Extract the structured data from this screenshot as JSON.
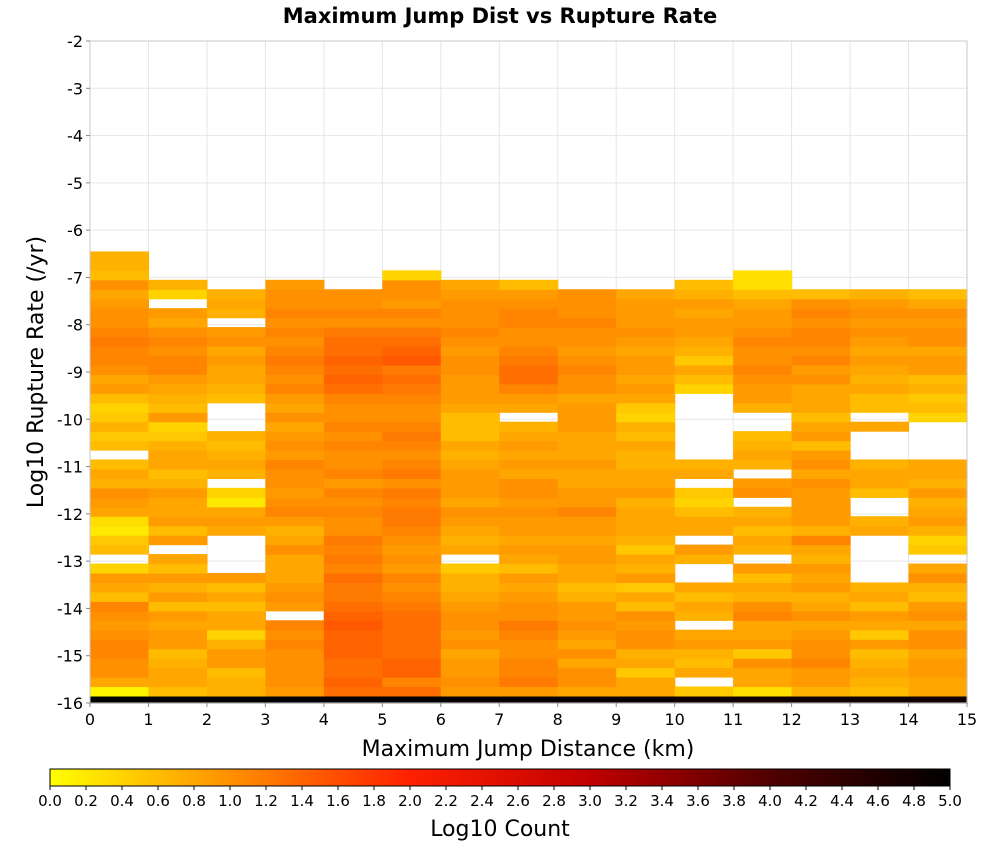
{
  "chart_data": {
    "type": "heatmap",
    "title": "Maximum Jump Dist vs Rupture Rate",
    "xlabel": "Maximum Jump Distance (km)",
    "ylabel": "Log10 Rupture Rate (/yr)",
    "xlim": [
      0,
      15
    ],
    "ylim": [
      -16,
      -2
    ],
    "x_ticks": [
      0,
      1,
      2,
      3,
      4,
      5,
      6,
      7,
      8,
      9,
      10,
      11,
      12,
      13,
      14,
      15
    ],
    "y_ticks": [
      -2,
      -3,
      -4,
      -5,
      -6,
      -7,
      -8,
      -9,
      -10,
      -11,
      -12,
      -13,
      -14,
      -15,
      -16
    ],
    "x_bin_width": 1,
    "y_bin_height": 0.2,
    "y_bin_start": -15.95,
    "grid": true,
    "colorbar": {
      "label": "Log10 Count",
      "min": 0.0,
      "max": 5.0,
      "ticks": [
        "0.0",
        "0.2",
        "0.4",
        "0.6",
        "0.8",
        "1.0",
        "1.2",
        "1.4",
        "1.6",
        "1.8",
        "2.0",
        "2.2",
        "2.4",
        "2.6",
        "2.8",
        "3.0",
        "3.2",
        "3.4",
        "3.6",
        "3.8",
        "4.0",
        "4.2",
        "4.4",
        "4.6",
        "4.8",
        "5.0"
      ],
      "placement": "bottom",
      "colors": [
        "#ffff00",
        "#ff9000",
        "#ff2000",
        "#c00000",
        "#500000",
        "#000000"
      ]
    },
    "rows_bottom_to_top": [
      [
        5.0,
        5.0,
        5.0,
        5.0,
        5.0,
        5.0,
        4.9,
        4.9,
        4.9,
        4.9,
        4.8,
        4.8,
        4.8,
        4.8,
        4.8
      ],
      [
        0.1,
        0.6,
        0.7,
        0.9,
        1.3,
        1.3,
        0.9,
        0.9,
        0.8,
        0.8,
        0.5,
        0.3,
        0.7,
        0.6,
        0.8
      ],
      [
        0.8,
        0.8,
        0.7,
        1.0,
        1.4,
        1.1,
        1.0,
        1.2,
        1.0,
        0.8,
        null,
        0.8,
        0.9,
        0.7,
        0.8
      ],
      [
        1.0,
        0.8,
        0.6,
        1.0,
        1.3,
        1.4,
        0.9,
        1.1,
        1.0,
        0.5,
        0.8,
        0.8,
        0.9,
        0.8,
        0.9
      ],
      [
        1.0,
        0.7,
        0.9,
        1.0,
        1.3,
        1.4,
        0.9,
        1.1,
        0.8,
        0.8,
        0.6,
        1.0,
        1.1,
        0.7,
        0.9
      ],
      [
        1.1,
        0.6,
        0.9,
        1.0,
        1.4,
        1.3,
        0.8,
        1.0,
        1.0,
        0.7,
        0.7,
        0.5,
        1.0,
        0.6,
        0.8
      ],
      [
        1.1,
        0.9,
        0.7,
        1.1,
        1.4,
        1.3,
        1.0,
        1.0,
        0.8,
        1.0,
        0.9,
        0.9,
        1.0,
        0.9,
        1.0
      ],
      [
        1.0,
        0.9,
        0.4,
        1.0,
        1.4,
        1.3,
        0.9,
        1.1,
        0.9,
        1.0,
        0.8,
        0.8,
        0.9,
        0.5,
        1.0
      ],
      [
        0.9,
        0.8,
        0.8,
        1.1,
        1.5,
        1.3,
        1.0,
        1.2,
        1.0,
        0.9,
        null,
        0.8,
        0.8,
        0.8,
        0.8
      ],
      [
        1.0,
        0.9,
        0.8,
        null,
        1.4,
        1.3,
        1.0,
        1.0,
        0.9,
        1.0,
        0.7,
        1.1,
        1.0,
        0.9,
        1.0
      ],
      [
        1.1,
        0.6,
        0.6,
        0.9,
        1.3,
        1.2,
        0.9,
        1.0,
        0.9,
        0.6,
        0.8,
        1.0,
        0.8,
        0.6,
        0.9
      ],
      [
        0.6,
        0.9,
        0.8,
        1.0,
        1.2,
        1.1,
        0.8,
        0.9,
        0.7,
        0.8,
        0.6,
        0.7,
        0.7,
        0.8,
        0.6
      ],
      [
        0.8,
        0.7,
        0.6,
        0.9,
        1.2,
        1.0,
        0.7,
        0.8,
        0.6,
        0.5,
        0.8,
        0.8,
        0.9,
        0.7,
        0.7
      ],
      [
        0.9,
        0.9,
        0.9,
        0.8,
        1.3,
        1.1,
        0.7,
        0.9,
        0.8,
        0.9,
        null,
        0.6,
        0.8,
        null,
        1.0
      ],
      [
        0.4,
        0.6,
        null,
        0.8,
        1.1,
        0.9,
        0.5,
        0.6,
        0.8,
        0.7,
        null,
        0.9,
        0.9,
        null,
        0.8
      ],
      [
        null,
        0.8,
        null,
        0.8,
        1.2,
        1.0,
        null,
        0.8,
        0.9,
        0.8,
        0.7,
        null,
        0.7,
        null,
        null
      ],
      [
        0.6,
        null,
        null,
        1.0,
        1.1,
        0.9,
        0.8,
        0.9,
        0.9,
        0.5,
        0.9,
        0.7,
        0.8,
        null,
        0.5
      ],
      [
        0.5,
        0.9,
        null,
        0.8,
        1.2,
        1.0,
        0.7,
        0.8,
        0.8,
        0.7,
        null,
        0.8,
        1.1,
        null,
        0.4
      ],
      [
        0.2,
        0.6,
        0.8,
        0.7,
        1.0,
        1.1,
        0.8,
        0.9,
        0.9,
        0.8,
        0.8,
        0.6,
        0.7,
        0.8,
        0.7
      ],
      [
        0.3,
        0.9,
        0.9,
        0.9,
        1.0,
        1.2,
        0.9,
        0.9,
        0.9,
        0.8,
        0.8,
        0.8,
        0.9,
        0.7,
        0.9
      ],
      [
        0.8,
        0.8,
        0.8,
        1.1,
        1.1,
        1.2,
        1.0,
        1.0,
        1.1,
        0.8,
        0.6,
        0.7,
        0.9,
        null,
        0.8
      ],
      [
        0.9,
        0.8,
        0.2,
        1.0,
        1.0,
        1.1,
        0.8,
        0.9,
        0.9,
        0.7,
        0.4,
        null,
        0.9,
        null,
        0.7
      ],
      [
        1.0,
        0.9,
        0.4,
        0.9,
        1.1,
        1.2,
        0.9,
        1.0,
        0.9,
        0.9,
        0.5,
        1.0,
        0.9,
        0.6,
        0.9
      ],
      [
        0.7,
        0.7,
        null,
        1.0,
        0.9,
        1.0,
        0.9,
        1.0,
        0.8,
        0.8,
        null,
        0.9,
        1.0,
        0.8,
        0.7
      ],
      [
        0.8,
        0.6,
        0.7,
        1.0,
        1.1,
        1.2,
        0.9,
        0.8,
        0.8,
        0.8,
        0.8,
        null,
        0.8,
        0.8,
        0.8
      ],
      [
        0.6,
        0.8,
        0.8,
        1.1,
        1.0,
        1.1,
        0.8,
        0.9,
        0.9,
        0.7,
        0.7,
        0.7,
        1.0,
        0.7,
        0.8
      ],
      [
        null,
        0.8,
        0.7,
        0.9,
        1.0,
        1.0,
        0.7,
        0.8,
        0.8,
        0.7,
        null,
        0.8,
        0.9,
        null,
        null
      ],
      [
        0.6,
        0.7,
        0.6,
        1.0,
        1.1,
        1.1,
        0.8,
        0.9,
        0.8,
        0.8,
        null,
        0.7,
        0.6,
        null,
        null
      ],
      [
        0.5,
        0.5,
        0.7,
        0.9,
        1.0,
        1.2,
        0.6,
        0.8,
        0.8,
        0.6,
        null,
        0.6,
        0.9,
        null,
        null
      ],
      [
        0.7,
        0.4,
        null,
        0.8,
        1.1,
        1.1,
        0.6,
        0.7,
        0.9,
        0.7,
        null,
        null,
        0.8,
        0.8,
        null
      ],
      [
        0.5,
        0.9,
        null,
        1.0,
        1.0,
        1.0,
        0.6,
        null,
        0.9,
        0.4,
        null,
        null,
        0.6,
        null,
        0.4
      ],
      [
        0.4,
        0.6,
        null,
        0.8,
        1.0,
        1.0,
        0.8,
        0.8,
        0.9,
        0.5,
        null,
        0.7,
        0.8,
        0.6,
        0.6
      ],
      [
        0.6,
        0.7,
        0.6,
        0.9,
        1.1,
        1.1,
        0.9,
        0.9,
        0.8,
        0.8,
        null,
        0.9,
        0.8,
        0.6,
        0.5
      ],
      [
        0.9,
        0.8,
        0.7,
        1.1,
        1.3,
        1.2,
        0.9,
        1.1,
        1.0,
        0.9,
        0.4,
        0.9,
        0.8,
        0.8,
        0.7
      ],
      [
        0.8,
        0.9,
        0.8,
        1.0,
        1.4,
        1.3,
        0.9,
        1.3,
        1.0,
        0.8,
        0.6,
        1.0,
        1.0,
        0.7,
        0.6
      ],
      [
        1.0,
        1.1,
        0.8,
        1.1,
        1.3,
        1.2,
        1.0,
        1.3,
        1.1,
        0.9,
        0.8,
        1.1,
        0.9,
        0.8,
        0.9
      ],
      [
        1.1,
        1.1,
        0.9,
        1.2,
        1.4,
        1.5,
        1.0,
        1.2,
        1.0,
        0.9,
        0.5,
        1.0,
        1.1,
        0.9,
        0.9
      ],
      [
        1.1,
        1.0,
        0.8,
        1.1,
        1.3,
        1.4,
        0.9,
        1.1,
        0.9,
        0.8,
        0.7,
        1.0,
        1.0,
        0.8,
        0.8
      ],
      [
        1.2,
        1.1,
        1.0,
        1.0,
        1.3,
        1.3,
        1.0,
        1.0,
        1.0,
        0.9,
        0.8,
        1.1,
        1.1,
        0.9,
        1.0
      ],
      [
        1.1,
        1.0,
        0.9,
        1.1,
        1.2,
        1.2,
        1.1,
        1.0,
        1.0,
        1.0,
        0.9,
        1.0,
        1.1,
        1.0,
        1.0
      ],
      [
        1.0,
        0.8,
        null,
        1.0,
        1.0,
        1.0,
        1.0,
        1.1,
        1.1,
        0.9,
        0.9,
        0.9,
        1.0,
        0.9,
        0.9
      ],
      [
        1.0,
        0.9,
        0.7,
        1.1,
        1.1,
        1.1,
        1.0,
        1.1,
        1.0,
        0.9,
        0.8,
        0.9,
        1.1,
        1.0,
        1.0
      ],
      [
        0.9,
        null,
        0.8,
        1.0,
        1.0,
        0.9,
        1.0,
        1.0,
        1.0,
        0.9,
        0.9,
        0.8,
        1.0,
        0.9,
        0.8
      ],
      [
        0.8,
        0.4,
        0.7,
        1.0,
        1.0,
        1.0,
        0.9,
        0.9,
        1.0,
        0.8,
        0.7,
        0.6,
        0.6,
        0.7,
        0.6
      ],
      [
        1.0,
        0.7,
        null,
        0.9,
        null,
        1.0,
        0.8,
        0.6,
        null,
        null,
        0.6,
        0.3,
        null,
        null,
        null
      ],
      [
        0.6,
        null,
        null,
        null,
        null,
        0.4,
        null,
        null,
        null,
        null,
        null,
        0.3,
        null,
        null,
        null
      ],
      [
        0.7,
        null,
        null,
        null,
        null,
        null,
        null,
        null,
        null,
        null,
        null,
        null,
        null,
        null,
        null
      ],
      [
        0.7,
        null,
        null,
        null,
        null,
        null,
        null,
        null,
        null,
        null,
        null,
        null,
        null,
        null,
        null
      ]
    ]
  }
}
